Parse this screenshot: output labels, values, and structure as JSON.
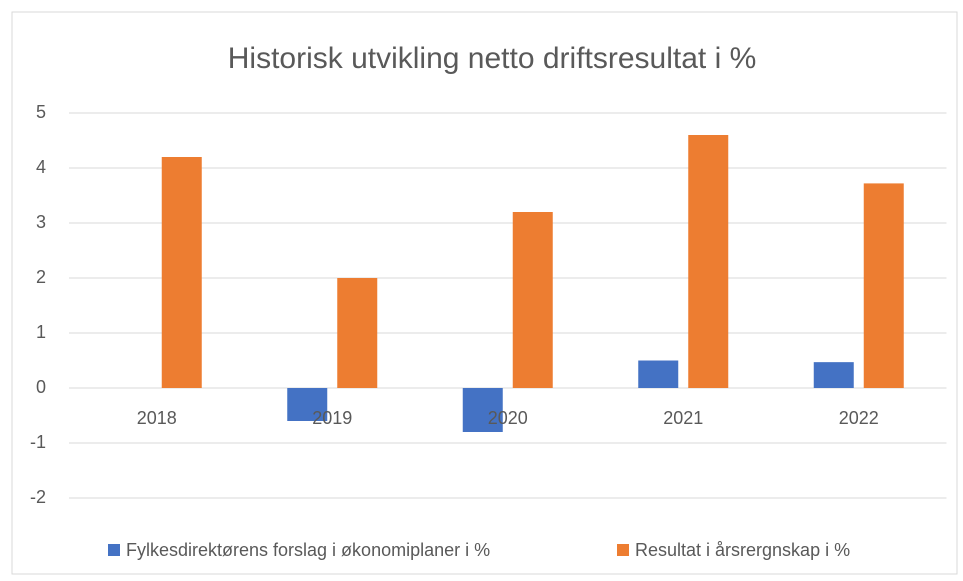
{
  "chart_data": {
    "type": "bar",
    "title": "Historisk utvikling netto driftsresultat i %",
    "categories": [
      "2018",
      "2019",
      "2020",
      "2021",
      "2022"
    ],
    "series": [
      {
        "name": "Fylkesdirektørens forslag i økonomiplaner i %",
        "color": "#4472c4",
        "values": [
          0,
          -0.6,
          -0.8,
          0.5,
          0.47
        ]
      },
      {
        "name": "Resultat i årsrergnskap i %",
        "color": "#ed7d31",
        "values": [
          4.2,
          2.0,
          3.2,
          4.6,
          3.72
        ]
      }
    ],
    "ylim": [
      -2,
      5
    ],
    "yticks": [
      -2,
      -1,
      0,
      1,
      2,
      3,
      4,
      5
    ],
    "grid": true,
    "legend": "bottom"
  }
}
